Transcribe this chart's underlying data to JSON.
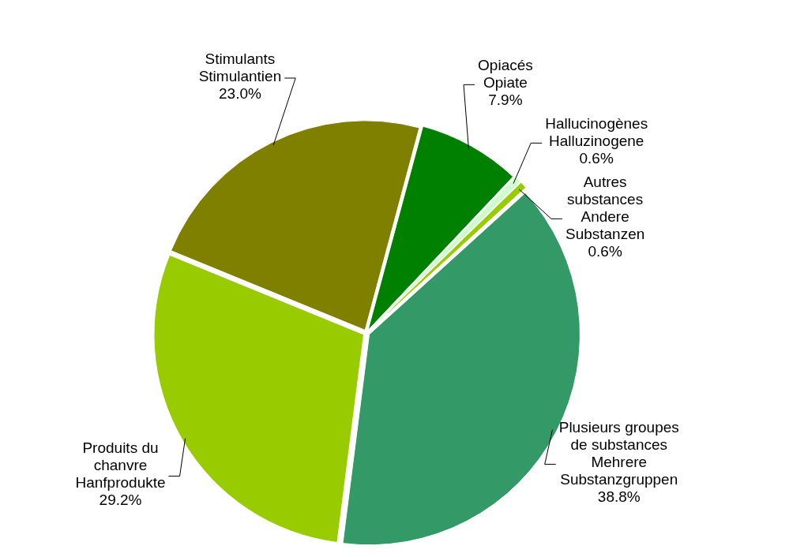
{
  "chart_data": {
    "type": "pie",
    "categories": [
      "Opiacés\nOpiate",
      "Hallucinogènes\nHalluzinogene",
      "Autres\nsubstances\nAndere\nSubstanzen",
      "Plusieurs groupes\nde substances\nMehrere\nSubstanzgruppen",
      "Produits du\nchanvre\nHanfprodukte",
      "Stimulants\nStimulantien"
    ],
    "values": [
      7.9,
      0.6,
      0.6,
      38.8,
      29.2,
      23.0
    ],
    "value_labels": [
      "7.9%",
      "0.6%",
      "0.6%",
      "38.8%",
      "29.2%",
      "23.0%"
    ],
    "colors": [
      "#008000",
      "#ccffcc",
      "#99cc00",
      "#339966",
      "#99cc00",
      "#808000"
    ],
    "legend": false
  }
}
